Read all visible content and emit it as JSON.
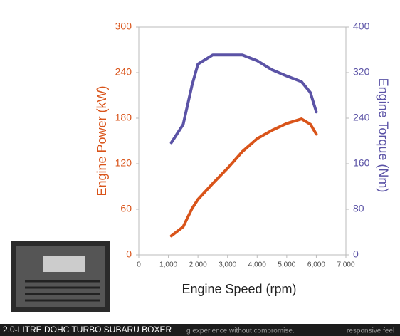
{
  "chart_data": {
    "type": "line",
    "x_label": "Engine Speed (rpm)",
    "y_label": "Engine Power (kW)",
    "y2_label": "Engine Torque (Nm)",
    "x": [
      1100,
      1500,
      1800,
      2000,
      2500,
      3000,
      3500,
      4000,
      4500,
      5000,
      5500,
      5800,
      6000
    ],
    "series": [
      {
        "name": "Engine Power (kW)",
        "color": "#d9541a",
        "values": [
          25,
          37,
          61,
          73,
          94,
          114,
          136,
          153,
          164,
          173,
          179,
          172,
          159
        ]
      },
      {
        "name": "Engine Torque (Nm)",
        "color": "#5b53a6",
        "axis": "y2",
        "values": [
          197,
          229,
          298,
          335,
          351,
          351,
          351,
          341,
          325,
          314,
          304,
          285,
          251
        ]
      }
    ],
    "xlim": [
      0,
      7000
    ],
    "xticks": [
      0,
      {
        "value": 1000,
        "label": "1,000"
      },
      {
        "value": 2000,
        "label": "2,000"
      },
      {
        "value": 3000,
        "label": "3,000"
      },
      {
        "value": 4000,
        "label": "4,000"
      },
      {
        "value": 5000,
        "label": "5,000"
      },
      {
        "value": 6000,
        "label": "6,000"
      },
      {
        "value": 7000,
        "label": "7,000"
      }
    ],
    "ylim": [
      0,
      300
    ],
    "yticks": [
      0,
      60,
      120,
      180,
      240,
      300
    ],
    "y2lim": [
      0,
      400
    ],
    "y2ticks": [
      0,
      80,
      160,
      240,
      320,
      400
    ],
    "y_color": "#d9541a",
    "y2_color": "#5b53a6",
    "grid": false
  },
  "caption": {
    "title": "2.0-LITRE DOHC TURBO SUBARU BOXER",
    "text_middle": "g experience without compromise.",
    "text_right": "responsive feel"
  }
}
